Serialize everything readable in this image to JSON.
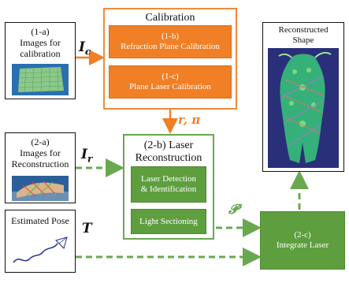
{
  "boxes": {
    "b1a": {
      "tag": "(1-a)",
      "label1": "Images for",
      "label2": "calibration"
    },
    "calibration": {
      "title": "Calibration"
    },
    "b1b": {
      "tag": "(1-b)",
      "label": "Refraction  Plane Calibration"
    },
    "b1c": {
      "tag": "(1-c)",
      "label": "Plane Laser Calibration"
    },
    "b2a": {
      "tag": "(2-a)",
      "label1": "Images for",
      "label2": "Reconstruction"
    },
    "b2b": {
      "title1": "(2-b) Laser",
      "title2": "Reconstruction"
    },
    "laser_detect": {
      "label1": "Laser Detection",
      "label2": "& Identification"
    },
    "light_sectioning": {
      "label": "Light Sectioning"
    },
    "estimated_pose": {
      "label": "Estimated Pose"
    },
    "b2c": {
      "tag": "(2-c)",
      "label": "Integrate Laser"
    },
    "reconstructed": {
      "label1": "Reconstructed",
      "label2": "Shape"
    }
  },
  "symbols": {
    "ic": "I",
    "ic_sub": "c",
    "ir": "I",
    "ir_sub": "r",
    "t": "T",
    "r_pi": "r, π",
    "p": "𝓟"
  },
  "colors": {
    "orange": "#f07f26",
    "green": "#5e9e3f",
    "green_dash": "#6aa84f"
  }
}
